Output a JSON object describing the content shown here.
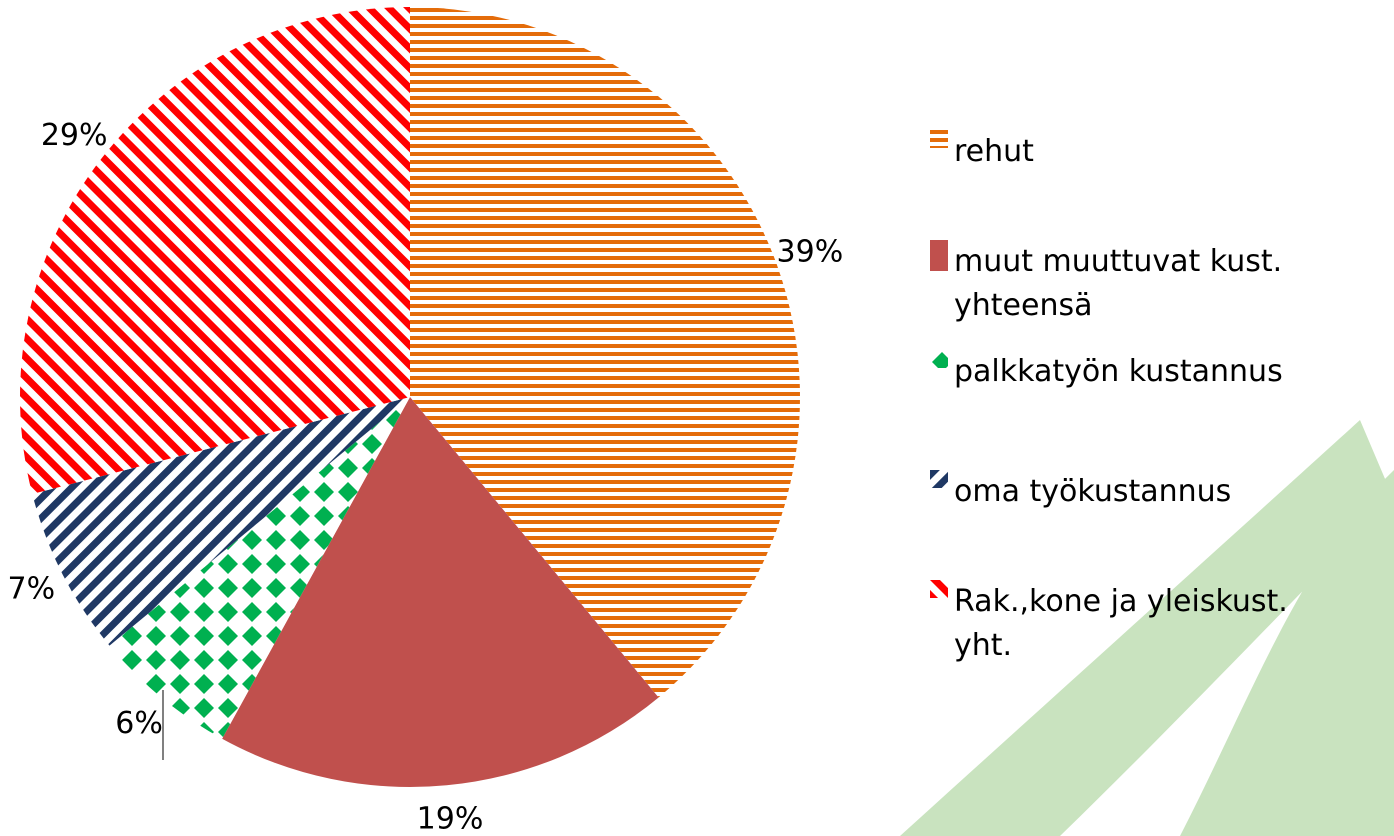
{
  "chart_data": {
    "type": "pie",
    "categories": [
      "rehut",
      "muut muuttuvat kust. yhteensä",
      "palkkatyön kustannus",
      "oma työkustannus",
      "Rak.,kone ja yleiskust. yht."
    ],
    "values": [
      39,
      19,
      6,
      7,
      29
    ],
    "value_labels": [
      "39%",
      "19%",
      "6%",
      "7%",
      "29%"
    ],
    "colors": [
      "#e46c0a",
      "#c0504d",
      "#00b050",
      "#1f3864",
      "#ff0000"
    ],
    "patterns": [
      "horizontal",
      "solid",
      "checker",
      "diagonal",
      "diagonal-reverse"
    ],
    "legend": "right"
  }
}
